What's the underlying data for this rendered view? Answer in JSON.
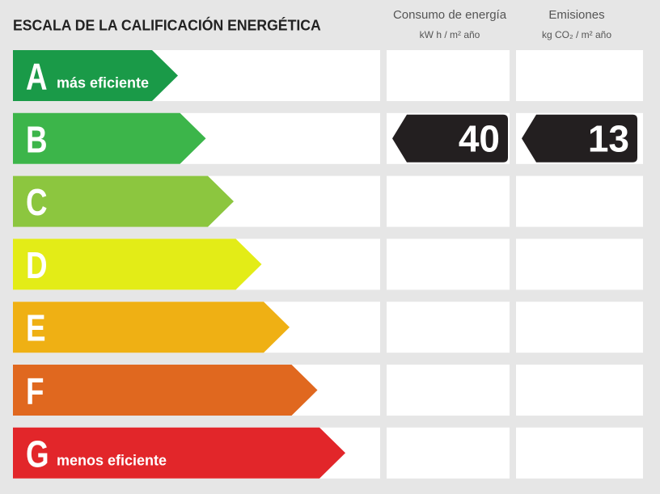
{
  "title": "ESCALA DE LA CALIFICACIÓN ENERGÉTICA",
  "columns": [
    {
      "title": "Consumo de energía",
      "unit": "kW h / m² año"
    },
    {
      "title": "Emisiones",
      "unit": "kg CO₂ / m² año"
    }
  ],
  "rows": [
    {
      "letter": "A",
      "note": "más eficiente",
      "color": "#1a9a48"
    },
    {
      "letter": "B",
      "color": "#3cb54a",
      "consumo": 40,
      "emisiones": 13
    },
    {
      "letter": "C",
      "color": "#8cc63f"
    },
    {
      "letter": "D",
      "color": "#e3ec17"
    },
    {
      "letter": "E",
      "color": "#efb014"
    },
    {
      "letter": "F",
      "color": "#e0681f"
    },
    {
      "letter": "G",
      "note": "menos eficiente",
      "color": "#e2262a"
    }
  ]
}
